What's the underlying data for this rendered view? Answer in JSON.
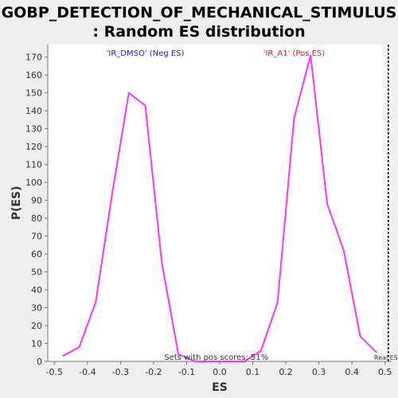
{
  "chart_data": {
    "type": "line",
    "title_line1": "GOBP_DETECTION_OF_MECHANICAL_STIMULUS",
    "title_line2": ": Random ES distribution",
    "xlabel": "ES",
    "ylabel": "P(ES)",
    "xlim": [
      -0.52,
      0.52
    ],
    "ylim": [
      0,
      177
    ],
    "x_ticks": [
      -0.5,
      -0.4,
      -0.3,
      -0.2,
      -0.1,
      0.0,
      0.1,
      0.2,
      0.3,
      0.4,
      0.5
    ],
    "x_tick_labels": [
      "-0.5",
      "-0.4",
      "-0.3",
      "-0.2",
      "-0.1",
      "0.0",
      "0.1",
      "0.2",
      "0.3",
      "0.4",
      "0.5"
    ],
    "y_ticks": [
      0,
      10,
      20,
      30,
      40,
      50,
      60,
      70,
      80,
      90,
      100,
      110,
      120,
      130,
      140,
      150,
      160,
      170
    ],
    "y_tick_labels": [
      "0",
      "10",
      "20",
      "30",
      "40",
      "50",
      "60",
      "70",
      "80",
      "90",
      "100",
      "110",
      "120",
      "130",
      "140",
      "150",
      "160",
      "170"
    ],
    "grid": false,
    "series": [
      {
        "color": "#ff33ff",
        "x": [
          -0.475,
          -0.425,
          -0.375,
          -0.325,
          -0.275,
          -0.225,
          -0.175,
          -0.125,
          -0.075,
          0.075,
          0.125,
          0.175,
          0.225,
          0.275,
          0.325,
          0.375,
          0.425,
          0.475
        ],
        "y": [
          3,
          8,
          33,
          94,
          150,
          143,
          55,
          4,
          0,
          0,
          6,
          33,
          136,
          171,
          88,
          62,
          14,
          5
        ]
      }
    ],
    "annotations": {
      "neg_label": "'IR_DMSO' (Neg ES)",
      "neg_color": "#2222cc",
      "pos_label": "'IR_A1' (Pos ES)",
      "pos_color": "#dd2222",
      "pos_scores_text": "Sets with pos scores: 51%",
      "real_es_label": "Real ES",
      "real_es_value": 0.51
    }
  }
}
